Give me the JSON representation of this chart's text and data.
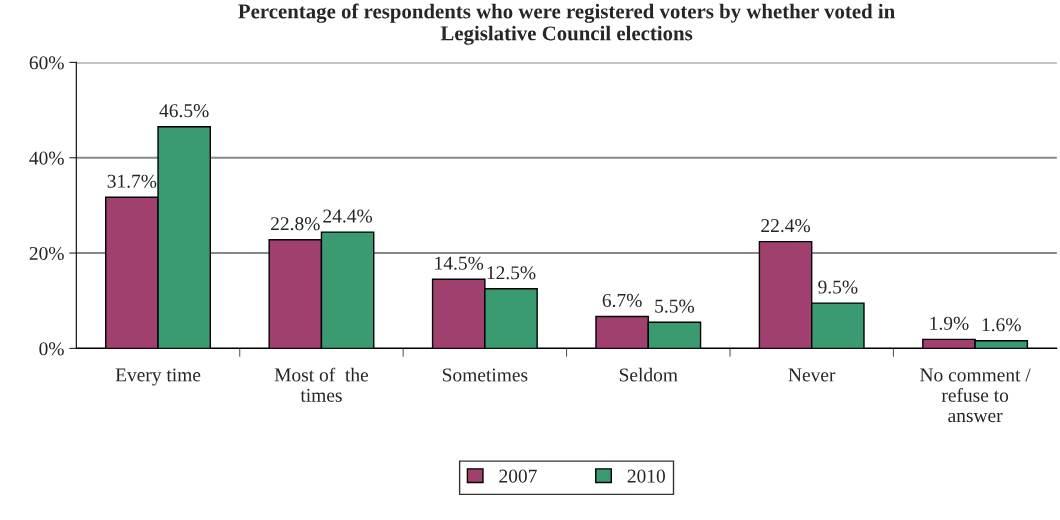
{
  "chart_data": {
    "type": "bar",
    "title": "Percentage of respondents who were registered voters by whether voted in\nLegislative Council elections",
    "categories": [
      "Every time",
      "Most of  the\ntimes",
      "Sometimes",
      "Seldom",
      "Never",
      "No comment /\nrefuse to\nanswer"
    ],
    "series": [
      {
        "name": "2007",
        "color": "#a0406e",
        "values": [
          31.7,
          22.8,
          14.5,
          6.7,
          22.4,
          1.9
        ],
        "value_labels": [
          "31.7%",
          "22.8%",
          "14.5%",
          "6.7%",
          "22.4%",
          "1.9%"
        ]
      },
      {
        "name": "2010",
        "color": "#3a9a70",
        "values": [
          46.5,
          24.4,
          12.5,
          5.5,
          9.5,
          1.6
        ],
        "value_labels": [
          "46.5%",
          "24.4%",
          "12.5%",
          "5.5%",
          "9.5%",
          "1.6%"
        ]
      }
    ],
    "ylim": [
      0,
      60
    ],
    "yticks": [
      {
        "value": 0,
        "label": "0%"
      },
      {
        "value": 20,
        "label": "20%"
      },
      {
        "value": 40,
        "label": "40%"
      },
      {
        "value": 60,
        "label": "60%"
      }
    ],
    "grid": "y",
    "legend": "bottom"
  }
}
